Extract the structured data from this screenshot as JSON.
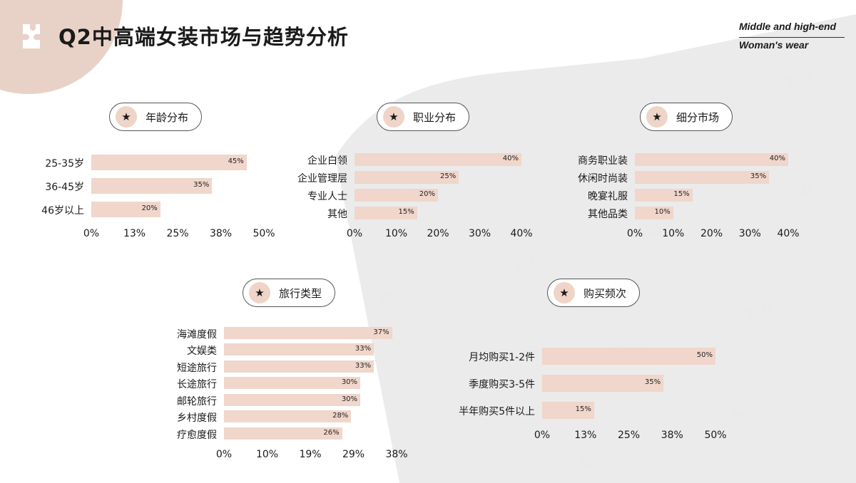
{
  "header": {
    "title": "Q2中高端女装市场与趋势分析",
    "subtitle_line1": "Middle and high-end",
    "subtitle_line2": "Woman's wear"
  },
  "watermark": "知衣",
  "colors": {
    "bar": "#f0d6cb",
    "corner": "#e8d2c8",
    "gray_bg": "#ebebeb"
  },
  "chart_data": [
    {
      "type": "bar",
      "orientation": "horizontal",
      "title": "年龄分布",
      "categories": [
        "25-35岁",
        "36-45岁",
        "46岁以上"
      ],
      "values": [
        45,
        35,
        20
      ],
      "value_labels": [
        "45%",
        "35%",
        "20%"
      ],
      "xlim": [
        0,
        50
      ],
      "ticks": [
        "0%",
        "13%",
        "25%",
        "38%",
        "50%"
      ]
    },
    {
      "type": "bar",
      "orientation": "horizontal",
      "title": "职业分布",
      "categories": [
        "企业白领",
        "企业管理层",
        "专业人士",
        "其他"
      ],
      "values": [
        40,
        25,
        20,
        15
      ],
      "value_labels": [
        "40%",
        "25%",
        "20%",
        "15%"
      ],
      "xlim": [
        0,
        40
      ],
      "ticks": [
        "0%",
        "10%",
        "20%",
        "30%",
        "40%"
      ]
    },
    {
      "type": "bar",
      "orientation": "horizontal",
      "title": "细分市场",
      "categories": [
        "商务职业装",
        "休闲时尚装",
        "晚宴礼服",
        "其他品类"
      ],
      "values": [
        40,
        35,
        15,
        10
      ],
      "value_labels": [
        "40%",
        "35%",
        "15%",
        "10%"
      ],
      "xlim": [
        0,
        40
      ],
      "ticks": [
        "0%",
        "10%",
        "20%",
        "30%",
        "40%"
      ]
    },
    {
      "type": "bar",
      "orientation": "horizontal",
      "title": "旅行类型",
      "categories": [
        "海滩度假",
        "文娱类",
        "短途旅行",
        "长途旅行",
        "邮轮旅行",
        "乡村度假",
        "疗愈度假"
      ],
      "values": [
        37,
        33,
        33,
        30,
        30,
        28,
        26
      ],
      "value_labels": [
        "37%",
        "33%",
        "33%",
        "30%",
        "30%",
        "28%",
        "26%"
      ],
      "xlim": [
        0,
        38
      ],
      "ticks": [
        "0%",
        "10%",
        "19%",
        "29%",
        "38%"
      ]
    },
    {
      "type": "bar",
      "orientation": "horizontal",
      "title": "购买频次",
      "categories": [
        "月均购买1-2件",
        "季度购买3-5件",
        "半年购买5件以上"
      ],
      "values": [
        50,
        35,
        15
      ],
      "value_labels": [
        "50%",
        "35%",
        "15%"
      ],
      "xlim": [
        0,
        50
      ],
      "ticks": [
        "0%",
        "13%",
        "25%",
        "38%",
        "50%"
      ]
    }
  ]
}
